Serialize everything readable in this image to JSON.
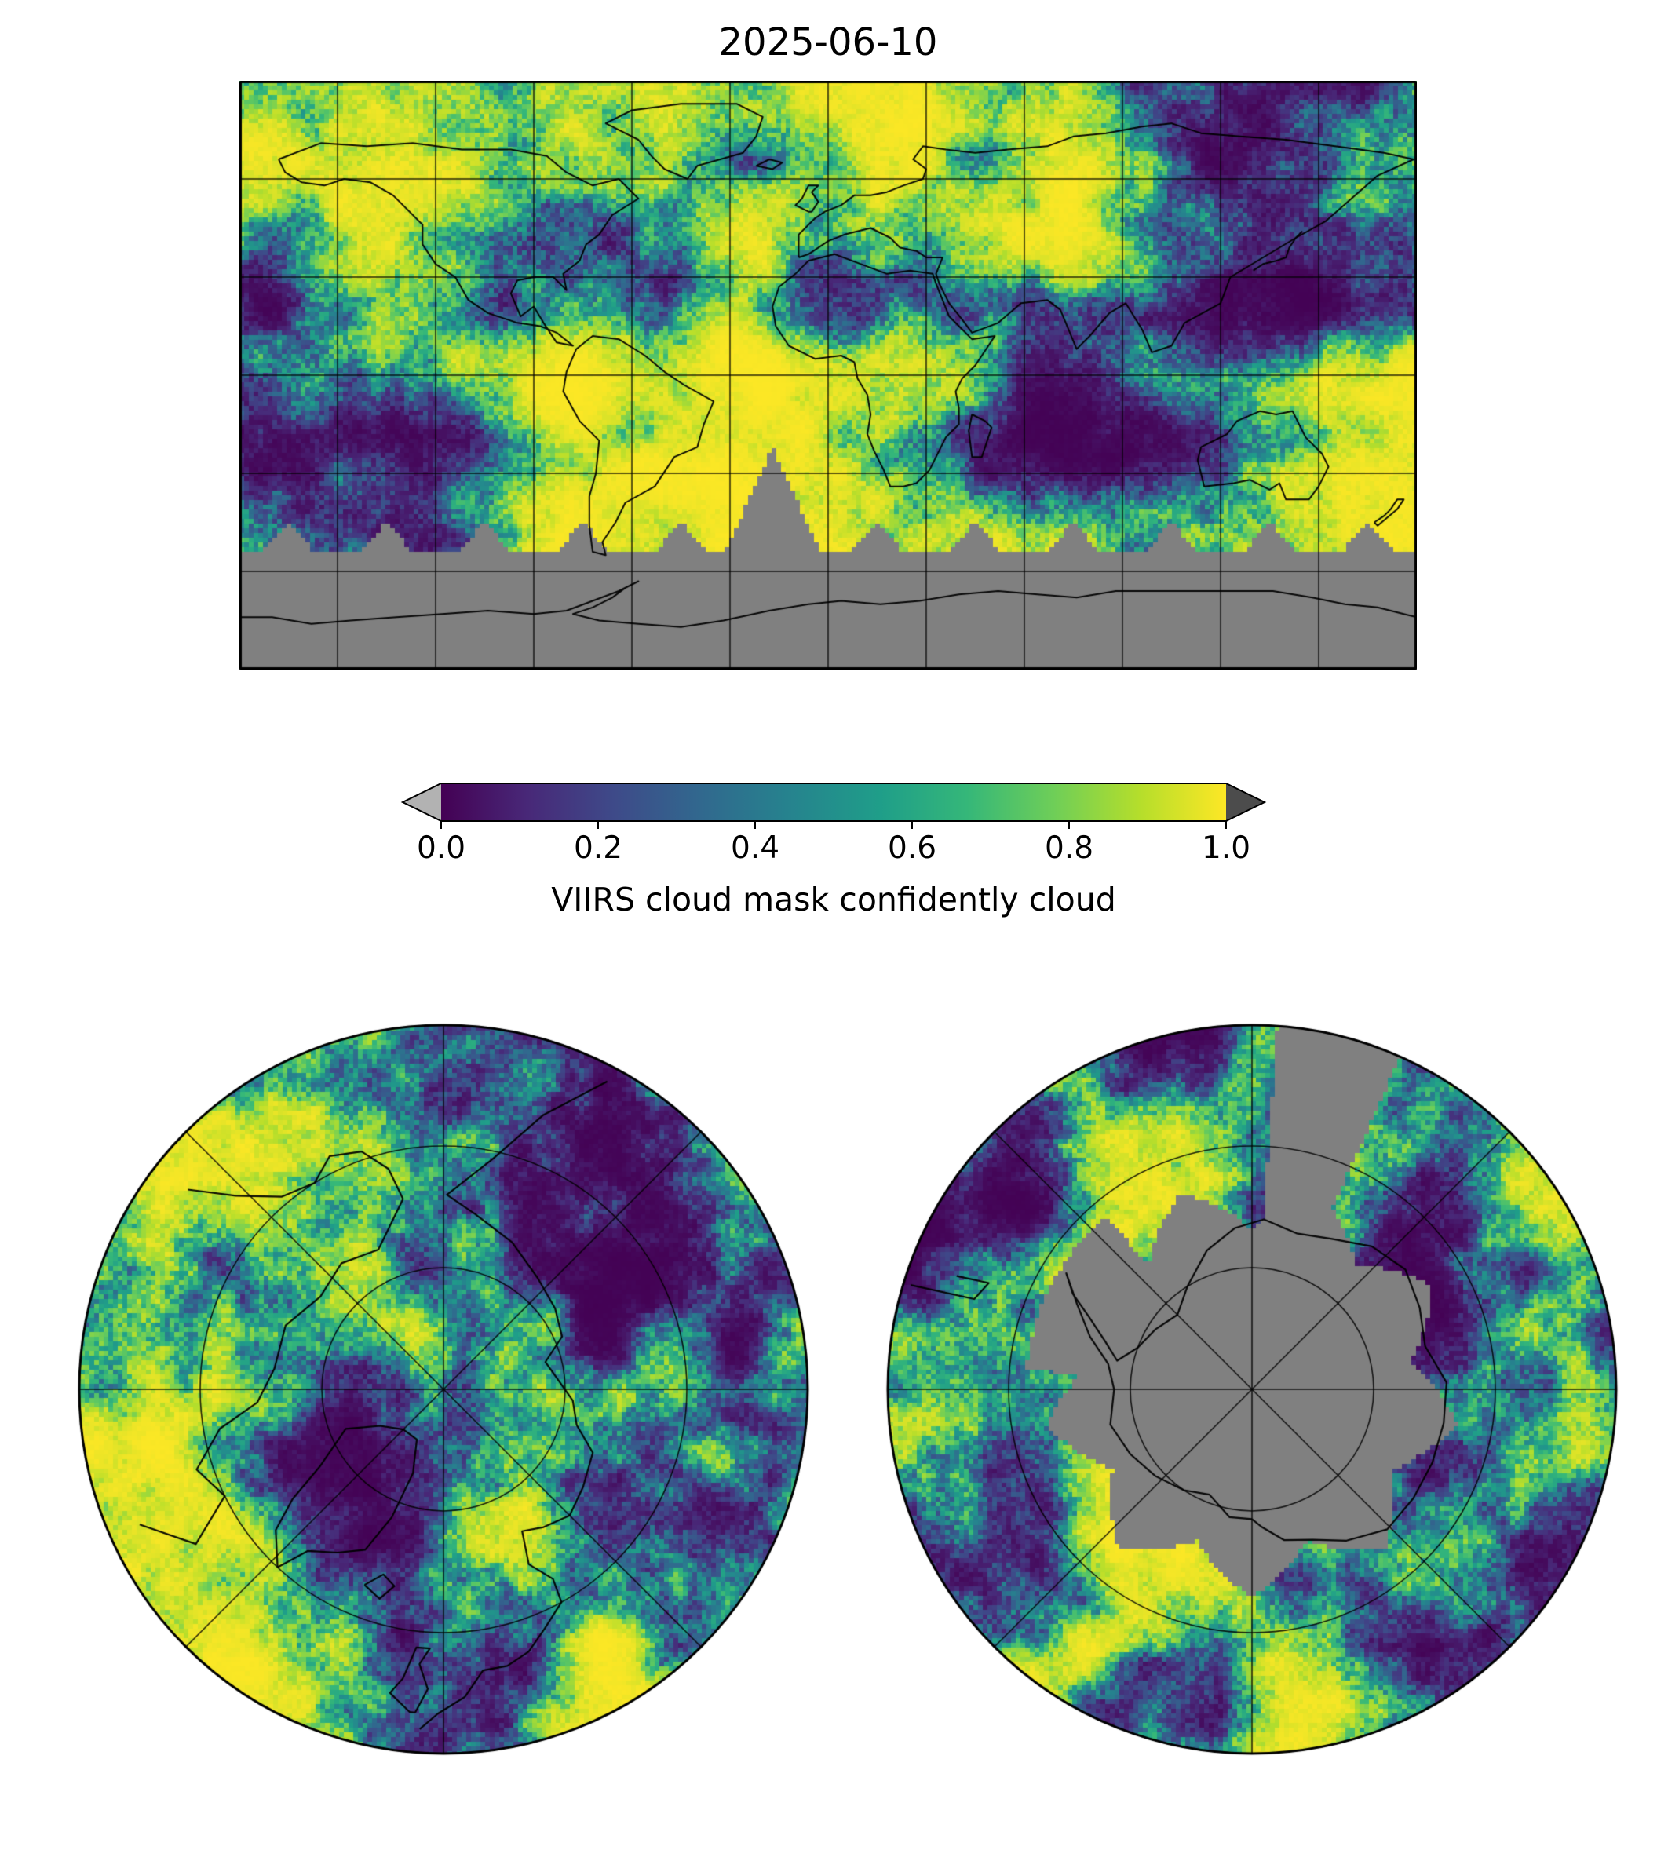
{
  "figure": {
    "title": "2025-06-10",
    "background": "#ffffff",
    "colorbar": {
      "label": "VIIRS cloud mask confidently cloud",
      "ticks": [
        "0.0",
        "0.2",
        "0.4",
        "0.6",
        "0.8",
        "1.0"
      ],
      "vmin": 0.0,
      "vmax": 1.0,
      "extend": "both",
      "under_color": "#b2b2b2",
      "over_color": "#4c4c4c",
      "outline_color": "#000000"
    },
    "colormap": {
      "name": "viridis",
      "stops": [
        {
          "t": 0.0,
          "c": "#440154"
        },
        {
          "t": 0.11,
          "c": "#482878"
        },
        {
          "t": 0.22,
          "c": "#3e4a89"
        },
        {
          "t": 0.33,
          "c": "#31688e"
        },
        {
          "t": 0.44,
          "c": "#26828e"
        },
        {
          "t": 0.56,
          "c": "#1f9e89"
        },
        {
          "t": 0.67,
          "c": "#35b779"
        },
        {
          "t": 0.78,
          "c": "#6ece58"
        },
        {
          "t": 0.89,
          "c": "#b5de2b"
        },
        {
          "t": 1.0,
          "c": "#fde725"
        }
      ]
    },
    "panels": {
      "global": {
        "projection": "equirectangular",
        "graticule_spacing_deg": 30,
        "missing_color": "#808080"
      },
      "north": {
        "projection": "north-polar-stereographic",
        "graticule_spacing_deg": 45
      },
      "south": {
        "projection": "south-polar-stereographic",
        "graticule_spacing_deg": 45,
        "missing_color": "#808080"
      }
    }
  },
  "chart_data": {
    "type": "heatmap",
    "title": "2025-06-10",
    "variable": "VIIRS cloud mask confidently cloud",
    "value_range": [
      0.0,
      1.0
    ],
    "colormap": "viridis",
    "colorbar_ticks": [
      0.0,
      0.2,
      0.4,
      0.6,
      0.8,
      1.0
    ],
    "colorbar_extend": "both",
    "missing_data": "gray cells = no retrievals (Antarctic polar night band south of ~55S and swath gaps)",
    "panels": [
      {
        "projection": "equirectangular",
        "extent": "global",
        "graticule_deg": 30
      },
      {
        "projection": "north polar stereographic",
        "extent": "high northern latitudes"
      },
      {
        "projection": "south polar stereographic",
        "extent": "high southern latitudes"
      }
    ],
    "legend_position": "horizontal colorbar below global map",
    "reading": "yellow ~1 = confidently cloudy, dark purple ~0 = clear; coastlines overlaid in black"
  }
}
